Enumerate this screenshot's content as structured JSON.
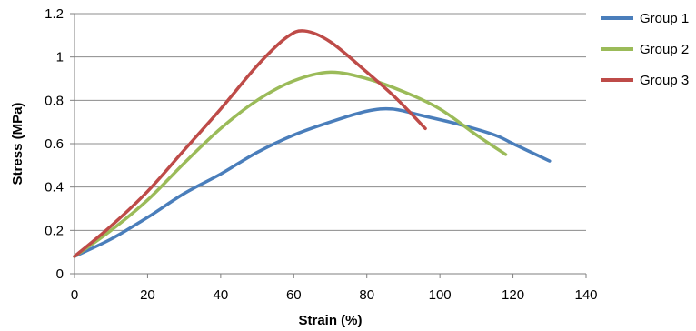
{
  "chart_data": {
    "type": "line",
    "title": "",
    "xlabel": "Strain (%)",
    "ylabel": "Stress (MPa)",
    "xlim": [
      0,
      140
    ],
    "ylim": [
      0,
      1.2
    ],
    "x_ticks": [
      "0",
      "20",
      "40",
      "60",
      "80",
      "100",
      "120",
      "140"
    ],
    "y_ticks": [
      "0",
      "0.2",
      "0.4",
      "0.6",
      "0.8",
      "1",
      "1.2"
    ],
    "grid": "horizontal",
    "legend_position": "right",
    "series": [
      {
        "name": "Group 1",
        "color": "#4a7ebb",
        "points": [
          [
            0,
            0.08
          ],
          [
            10,
            0.16
          ],
          [
            20,
            0.26
          ],
          [
            30,
            0.37
          ],
          [
            40,
            0.46
          ],
          [
            50,
            0.56
          ],
          [
            60,
            0.64
          ],
          [
            70,
            0.7
          ],
          [
            80,
            0.75
          ],
          [
            87,
            0.76
          ],
          [
            95,
            0.73
          ],
          [
            105,
            0.69
          ],
          [
            115,
            0.64
          ],
          [
            120,
            0.6
          ],
          [
            130,
            0.52
          ]
        ]
      },
      {
        "name": "Group 2",
        "color": "#9bbb59",
        "points": [
          [
            0,
            0.08
          ],
          [
            10,
            0.2
          ],
          [
            20,
            0.34
          ],
          [
            30,
            0.51
          ],
          [
            40,
            0.67
          ],
          [
            50,
            0.8
          ],
          [
            60,
            0.89
          ],
          [
            70,
            0.93
          ],
          [
            80,
            0.9
          ],
          [
            90,
            0.84
          ],
          [
            100,
            0.76
          ],
          [
            110,
            0.64
          ],
          [
            118,
            0.55
          ]
        ]
      },
      {
        "name": "Group 3",
        "color": "#be4b48",
        "points": [
          [
            0,
            0.08
          ],
          [
            10,
            0.22
          ],
          [
            20,
            0.38
          ],
          [
            30,
            0.57
          ],
          [
            40,
            0.76
          ],
          [
            50,
            0.96
          ],
          [
            58,
            1.09
          ],
          [
            63,
            1.12
          ],
          [
            70,
            1.07
          ],
          [
            80,
            0.93
          ],
          [
            88,
            0.81
          ],
          [
            96,
            0.67
          ]
        ]
      }
    ]
  }
}
